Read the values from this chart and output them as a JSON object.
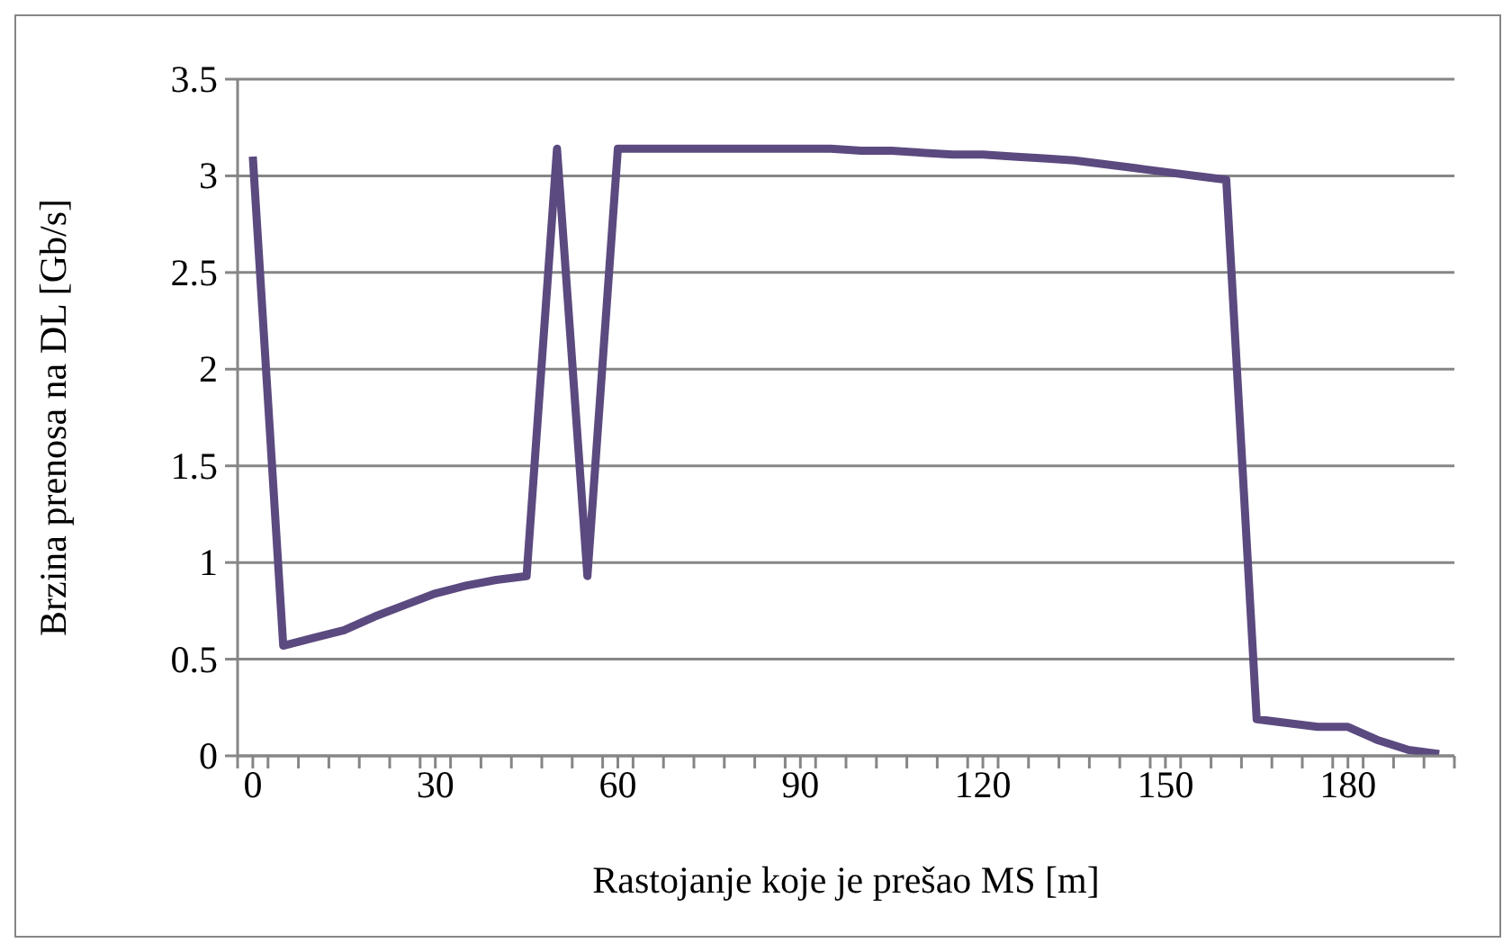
{
  "chart_data": {
    "type": "line",
    "xlabel": "Rastojanje koje je prešao MS [m]",
    "ylabel": "Brzina prenosa na DL [Gb/s]",
    "x": [
      0,
      5,
      10,
      15,
      20,
      25,
      30,
      35,
      40,
      45,
      50,
      55,
      60,
      65,
      70,
      75,
      80,
      85,
      90,
      95,
      100,
      105,
      110,
      115,
      120,
      125,
      130,
      135,
      140,
      145,
      150,
      155,
      160,
      165,
      170,
      175,
      180,
      185,
      190,
      195
    ],
    "series": [
      {
        "color": "#5b4a7f",
        "values": [
          3.1,
          0.57,
          0.61,
          0.65,
          0.72,
          0.78,
          0.84,
          0.88,
          0.91,
          0.93,
          3.14,
          0.93,
          3.14,
          3.14,
          3.14,
          3.14,
          3.14,
          3.14,
          3.14,
          3.14,
          3.13,
          3.13,
          3.12,
          3.11,
          3.11,
          3.1,
          3.09,
          3.08,
          3.06,
          3.04,
          3.02,
          3.0,
          2.98,
          0.19,
          0.17,
          0.15,
          0.15,
          0.08,
          0.03,
          0.01
        ]
      }
    ],
    "xlim": [
      -2.5,
      197.5
    ],
    "xticks": [
      {
        "value": -2.5,
        "label": null
      },
      0,
      {
        "value": 2.5,
        "label": null
      },
      {
        "value": 7.5,
        "label": null
      },
      {
        "value": 12.5,
        "label": null
      },
      {
        "value": 17.5,
        "label": null
      },
      {
        "value": 22.5,
        "label": null
      },
      {
        "value": 27.5,
        "label": null
      },
      30,
      {
        "value": 32.5,
        "label": null
      },
      {
        "value": 37.5,
        "label": null
      },
      {
        "value": 42.5,
        "label": null
      },
      {
        "value": 47.5,
        "label": null
      },
      {
        "value": 52.5,
        "label": null
      },
      {
        "value": 57.5,
        "label": null
      },
      60,
      {
        "value": 62.5,
        "label": null
      },
      {
        "value": 67.5,
        "label": null
      },
      {
        "value": 72.5,
        "label": null
      },
      {
        "value": 77.5,
        "label": null
      },
      {
        "value": 82.5,
        "label": null
      },
      {
        "value": 87.5,
        "label": null
      },
      90,
      {
        "value": 92.5,
        "label": null
      },
      {
        "value": 97.5,
        "label": null
      },
      {
        "value": 102.5,
        "label": null
      },
      {
        "value": 107.5,
        "label": null
      },
      {
        "value": 112.5,
        "label": null
      },
      {
        "value": 117.5,
        "label": null
      },
      120,
      {
        "value": 122.5,
        "label": null
      },
      {
        "value": 127.5,
        "label": null
      },
      {
        "value": 132.5,
        "label": null
      },
      {
        "value": 137.5,
        "label": null
      },
      {
        "value": 142.5,
        "label": null
      },
      {
        "value": 147.5,
        "label": null
      },
      150,
      {
        "value": 152.5,
        "label": null
      },
      {
        "value": 157.5,
        "label": null
      },
      {
        "value": 162.5,
        "label": null
      },
      {
        "value": 167.5,
        "label": null
      },
      {
        "value": 172.5,
        "label": null
      },
      {
        "value": 177.5,
        "label": null
      },
      180,
      {
        "value": 182.5,
        "label": null
      },
      {
        "value": 187.5,
        "label": null
      },
      {
        "value": 192.5,
        "label": null
      },
      {
        "value": 197.5,
        "label": null
      }
    ],
    "ylim": [
      0,
      3.5
    ],
    "yticks": [
      0,
      0.5,
      1,
      1.5,
      2,
      2.5,
      3,
      3.5
    ],
    "grid": "y",
    "marker": "none",
    "line_style": "solid",
    "legend": false
  }
}
